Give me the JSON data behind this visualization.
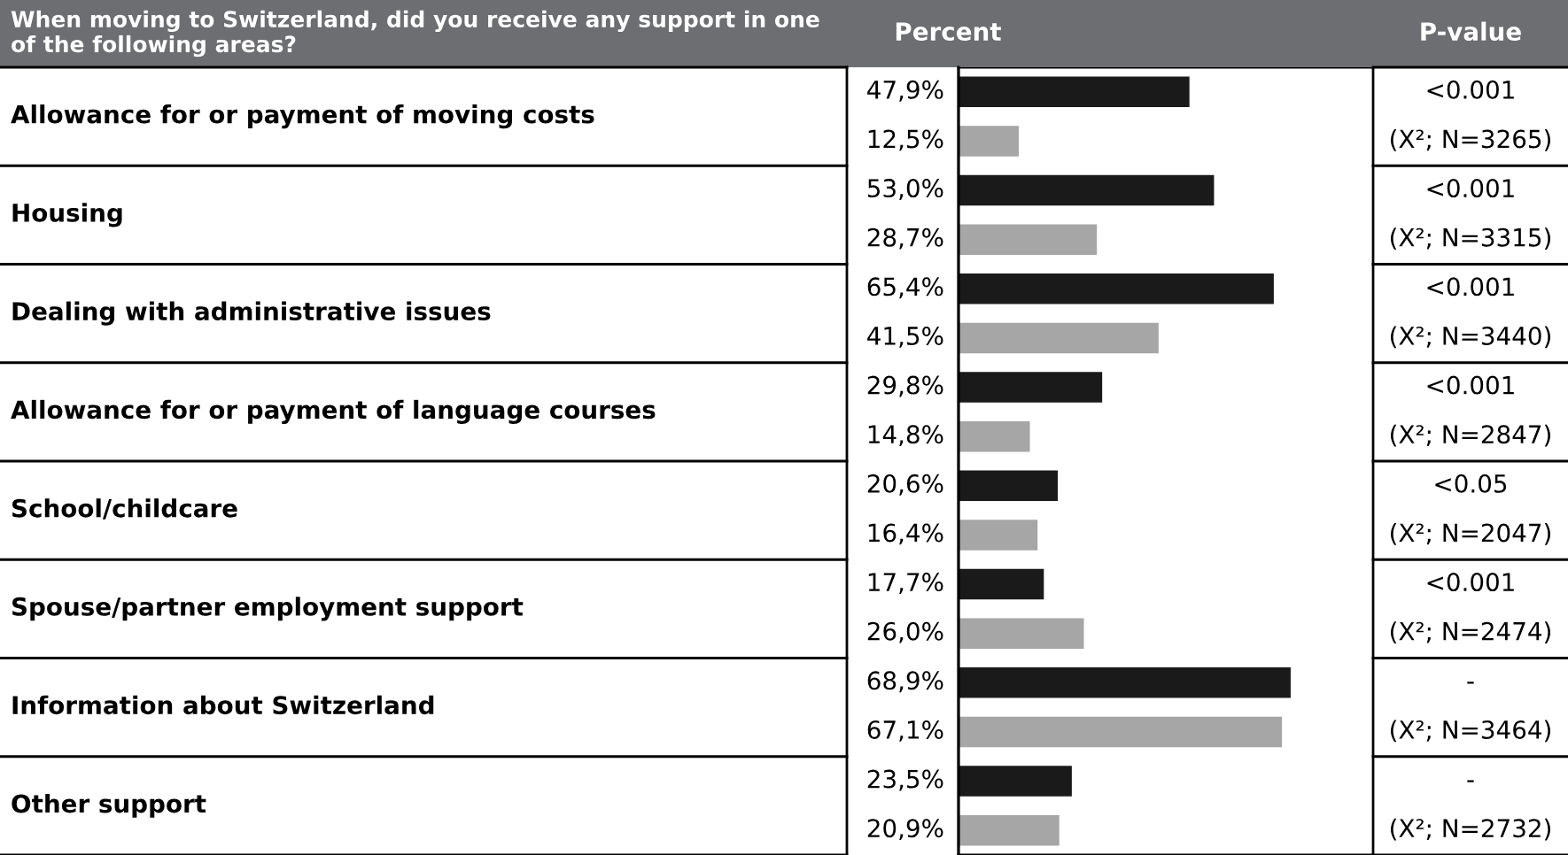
{
  "chart_data": {
    "type": "bar",
    "orientation": "horizontal",
    "title": "When moving to Switzerland, did you receive any support in one of the following areas?",
    "xlabel": "Percent",
    "categories": [
      "Allowance for or payment of moving costs",
      "Housing",
      "Dealing with administrative issues",
      "Allowance for or payment of language courses",
      "School/childcare",
      "Spouse/partner employment support",
      "Information about Switzerland",
      "Other support"
    ],
    "series": [
      {
        "color": "#1a1a1a",
        "values": [
          47.9,
          53.0,
          65.4,
          29.8,
          20.6,
          17.7,
          68.9,
          23.5
        ],
        "value_labels": [
          "47,9%",
          "53,0%",
          "65,4%",
          "29,8%",
          "20,6%",
          "17,7%",
          "68,9%",
          "23,5%"
        ]
      },
      {
        "color": "#a6a6a6",
        "values": [
          12.5,
          28.7,
          41.5,
          14.8,
          16.4,
          26.0,
          67.1,
          20.9
        ],
        "value_labels": [
          "12,5%",
          "28,7%",
          "41,5%",
          "14,8%",
          "16,4%",
          "26,0%",
          "67,1%",
          "20,9%"
        ]
      }
    ],
    "xlim": [
      0,
      86
    ],
    "annotations": [
      "P-value",
      "<0.001",
      "(X²; N=3265)",
      "<0.001",
      "(X²; N=3315)",
      "<0.001",
      "(X²; N=3440)",
      "<0.001",
      "(X²; N=2847)",
      "<0.05",
      "(X²; N=2047)",
      "<0.001",
      "(X²; N=2474)",
      "-",
      "(X²; N=3464)",
      "-",
      "(X²; N=2732)"
    ]
  }
}
